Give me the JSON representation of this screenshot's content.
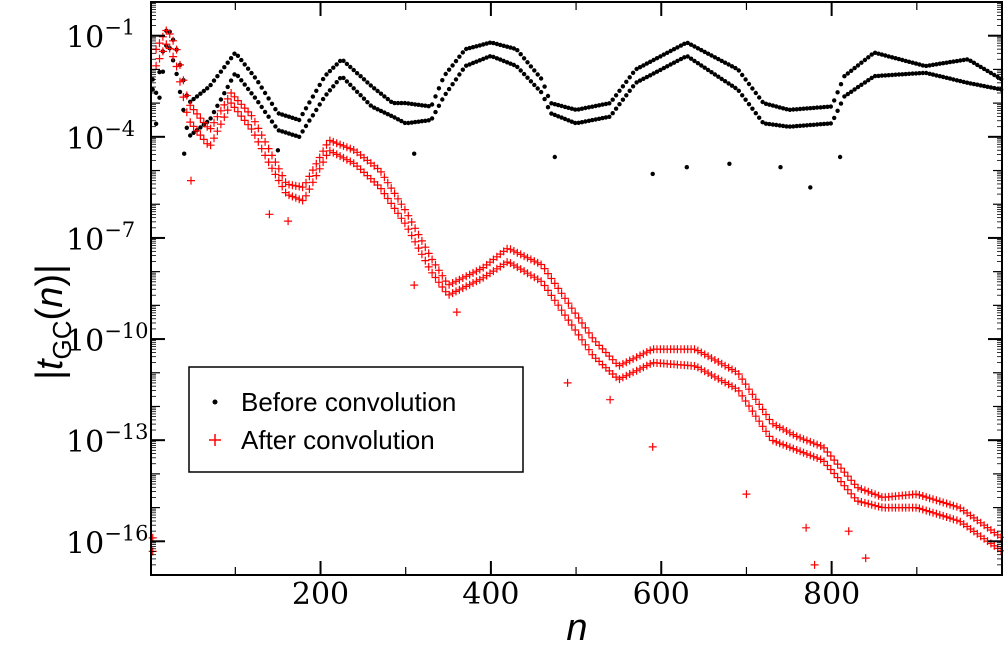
{
  "chart_data": {
    "type": "scatter",
    "title": "",
    "xlabel": "n",
    "ylabel": {
      "prefix": "|",
      "var": "t",
      "sub": "GC",
      "open": "(",
      "arg": "n",
      "close": ")|"
    },
    "xlim": [
      1,
      1000
    ],
    "ylim_log10": [
      -17,
      0
    ],
    "yscale": "log",
    "grid": false,
    "legend_placement": "lower-left",
    "x_ticks": [
      "200",
      "400",
      "600",
      "800"
    ],
    "x_tick_values": [
      200,
      400,
      600,
      800
    ],
    "y_ticks": [
      {
        "base": "10",
        "exp": "−1",
        "log": -1
      },
      {
        "base": "10",
        "exp": "−4",
        "log": -4
      },
      {
        "base": "10",
        "exp": "−7",
        "log": -7
      },
      {
        "base": "10",
        "exp": "−10",
        "log": -10
      },
      {
        "base": "10",
        "exp": "−13",
        "log": -13
      },
      {
        "base": "10",
        "exp": "−16",
        "log": -16
      }
    ],
    "series": [
      {
        "name": "Before convolution",
        "marker": "dot",
        "color": "#000000",
        "envelope_log10": [
          [
            [
              5,
              -3
            ],
            [
              20,
              -0.7
            ],
            [
              30,
              -1.3
            ],
            [
              45,
              -3
            ],
            [
              70,
              -2.5
            ],
            [
              100,
              -1.5
            ],
            [
              125,
              -2.3
            ],
            [
              150,
              -3.3
            ],
            [
              175,
              -3.5
            ],
            [
              205,
              -2.2
            ],
            [
              225,
              -1.7
            ],
            [
              260,
              -2.5
            ],
            [
              285,
              -3.0
            ],
            [
              300,
              -3.0
            ],
            [
              330,
              -3.1
            ],
            [
              345,
              -2.2
            ],
            [
              370,
              -1.4
            ],
            [
              400,
              -1.2
            ],
            [
              430,
              -1.4
            ],
            [
              460,
              -2.3
            ],
            [
              470,
              -3.0
            ],
            [
              500,
              -3.2
            ],
            [
              540,
              -3.0
            ],
            [
              570,
              -2.0
            ],
            [
              630,
              -1.2
            ],
            [
              690,
              -2.0
            ],
            [
              720,
              -3.0
            ],
            [
              750,
              -3.2
            ],
            [
              800,
              -3.1
            ],
            [
              815,
              -2.2
            ],
            [
              850,
              -1.5
            ],
            [
              910,
              -1.9
            ],
            [
              960,
              -1.7
            ],
            [
              1000,
              -2.3
            ]
          ],
          [
            [
              5,
              -4
            ],
            [
              20,
              -1.1
            ],
            [
              30,
              -2.0
            ],
            [
              45,
              -4
            ],
            [
              70,
              -3.5
            ],
            [
              100,
              -2.1
            ],
            [
              125,
              -2.9
            ],
            [
              150,
              -3.8
            ],
            [
              175,
              -4.0
            ],
            [
              205,
              -2.8
            ],
            [
              225,
              -2.2
            ],
            [
              260,
              -3.1
            ],
            [
              285,
              -3.4
            ],
            [
              300,
              -3.6
            ],
            [
              330,
              -3.5
            ],
            [
              345,
              -2.8
            ],
            [
              370,
              -1.9
            ],
            [
              400,
              -1.6
            ],
            [
              430,
              -1.9
            ],
            [
              460,
              -2.7
            ],
            [
              470,
              -3.3
            ],
            [
              500,
              -3.6
            ],
            [
              540,
              -3.4
            ],
            [
              570,
              -2.4
            ],
            [
              630,
              -1.6
            ],
            [
              690,
              -2.6
            ],
            [
              720,
              -3.6
            ],
            [
              750,
              -3.7
            ],
            [
              800,
              -3.6
            ],
            [
              815,
              -2.8
            ],
            [
              850,
              -2.2
            ],
            [
              910,
              -2.1
            ],
            [
              960,
              -2.4
            ],
            [
              1000,
              -2.6
            ]
          ]
        ],
        "outliers": [
          [
            40,
            -4.5
          ],
          [
            150,
            -4.4
          ],
          [
            310,
            -4.5
          ],
          [
            475,
            -4.6
          ],
          [
            590,
            -5.1
          ],
          [
            630,
            -4.9
          ],
          [
            680,
            -4.8
          ],
          [
            740,
            -4.9
          ],
          [
            775,
            -5.5
          ],
          [
            810,
            -4.6
          ]
        ]
      },
      {
        "name": "After convolution",
        "marker": "plus",
        "color": "#ff0000",
        "envelope_log10": [
          [
            [
              5,
              -1.5
            ],
            [
              20,
              -0.8
            ],
            [
              30,
              -1.3
            ],
            [
              45,
              -3.0
            ],
            [
              70,
              -3.8
            ],
            [
              95,
              -2.7
            ],
            [
              120,
              -3.4
            ],
            [
              140,
              -4.4
            ],
            [
              160,
              -5.4
            ],
            [
              180,
              -5.5
            ],
            [
              210,
              -4.1
            ],
            [
              240,
              -4.4
            ],
            [
              270,
              -5.0
            ],
            [
              300,
              -6.2
            ],
            [
              330,
              -7.6
            ],
            [
              350,
              -8.4
            ],
            [
              390,
              -7.9
            ],
            [
              420,
              -7.3
            ],
            [
              460,
              -7.8
            ],
            [
              490,
              -8.9
            ],
            [
              520,
              -10.0
            ],
            [
              550,
              -10.8
            ],
            [
              590,
              -10.3
            ],
            [
              640,
              -10.3
            ],
            [
              690,
              -11.0
            ],
            [
              730,
              -12.5
            ],
            [
              760,
              -12.9
            ],
            [
              790,
              -13.2
            ],
            [
              830,
              -14.4
            ],
            [
              860,
              -14.7
            ],
            [
              900,
              -14.6
            ],
            [
              950,
              -15.0
            ],
            [
              1000,
              -15.9
            ]
          ],
          [
            [
              5,
              -2.0
            ],
            [
              20,
              -1.2
            ],
            [
              30,
              -1.8
            ],
            [
              45,
              -3.5
            ],
            [
              70,
              -4.3
            ],
            [
              95,
              -3.0
            ],
            [
              120,
              -3.8
            ],
            [
              140,
              -4.8
            ],
            [
              160,
              -5.7
            ],
            [
              180,
              -5.9
            ],
            [
              210,
              -4.4
            ],
            [
              240,
              -4.8
            ],
            [
              270,
              -5.5
            ],
            [
              300,
              -6.6
            ],
            [
              330,
              -8.0
            ],
            [
              350,
              -8.7
            ],
            [
              390,
              -8.2
            ],
            [
              420,
              -7.7
            ],
            [
              460,
              -8.3
            ],
            [
              490,
              -9.4
            ],
            [
              520,
              -10.5
            ],
            [
              550,
              -11.2
            ],
            [
              590,
              -10.7
            ],
            [
              640,
              -10.8
            ],
            [
              690,
              -11.5
            ],
            [
              730,
              -13.0
            ],
            [
              760,
              -13.3
            ],
            [
              790,
              -13.6
            ],
            [
              830,
              -14.8
            ],
            [
              860,
              -15.0
            ],
            [
              900,
              -15.0
            ],
            [
              950,
              -15.4
            ],
            [
              1000,
              -16.3
            ]
          ]
        ],
        "outliers": [
          [
            48,
            -5.3
          ],
          [
            140,
            -6.3
          ],
          [
            162,
            -6.5
          ],
          [
            310,
            -8.4
          ],
          [
            360,
            -9.2
          ],
          [
            490,
            -11.3
          ],
          [
            540,
            -11.8
          ],
          [
            590,
            -13.2
          ],
          [
            700,
            -14.6
          ],
          [
            770,
            -15.6
          ],
          [
            780,
            -16.7
          ],
          [
            820,
            -15.7
          ],
          [
            840,
            -16.5
          ]
        ]
      }
    ]
  }
}
